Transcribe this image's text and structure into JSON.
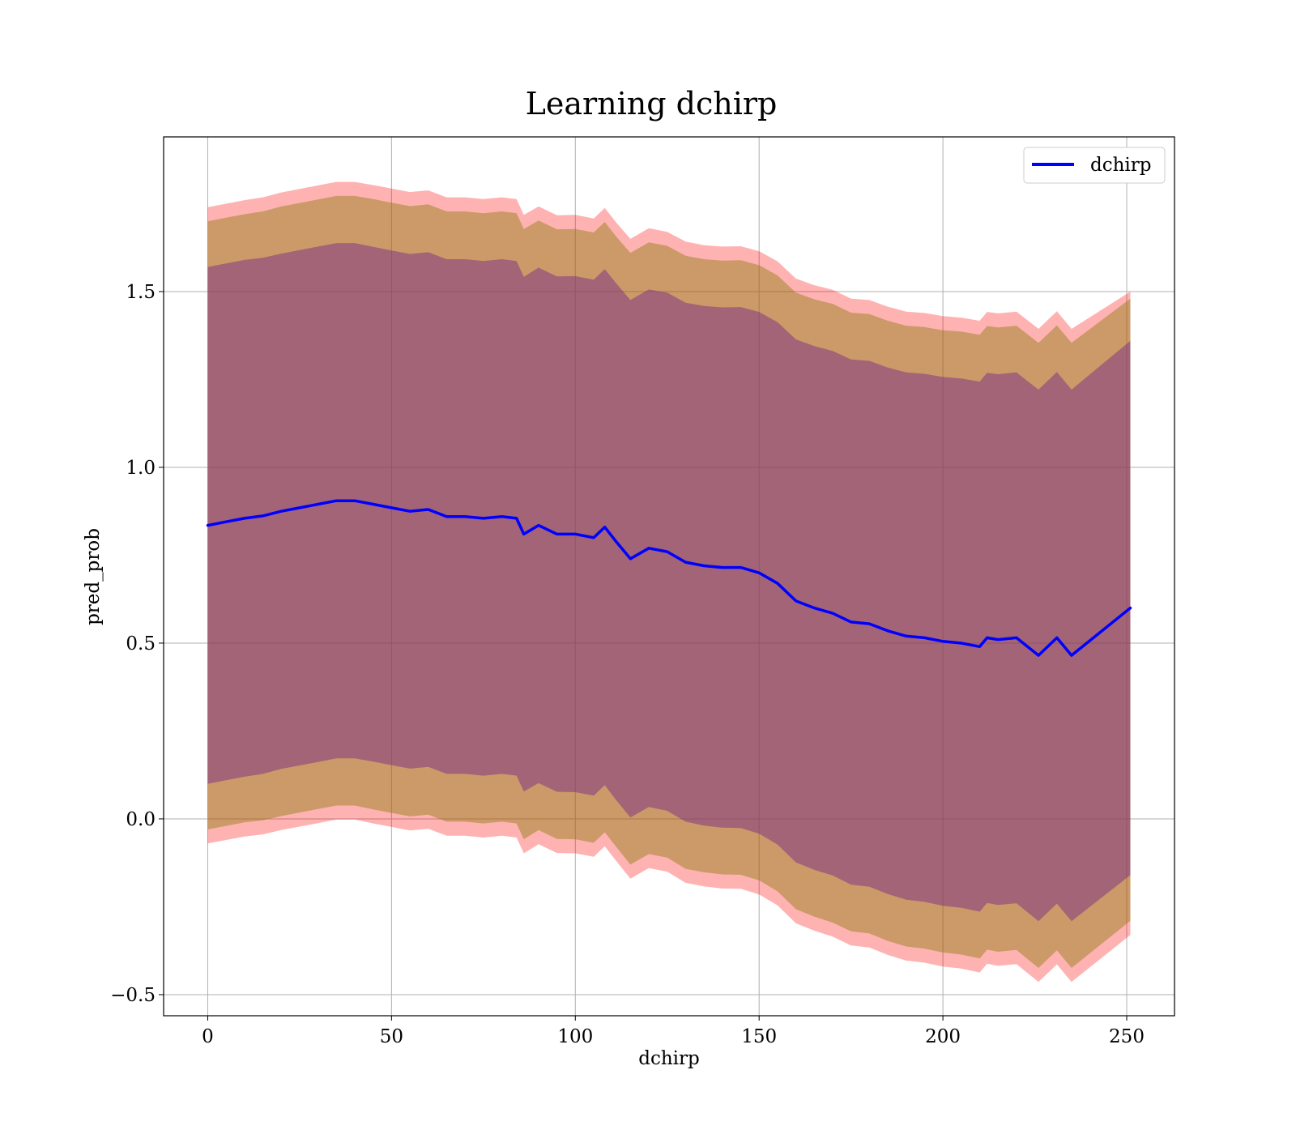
{
  "chart_data": {
    "type": "line",
    "title": "Learning dchirp",
    "xlabel": "dchirp",
    "ylabel": "pred_prob",
    "xlim": [
      -12,
      263
    ],
    "ylim": [
      -0.56,
      1.94
    ],
    "xticks": [
      0,
      50,
      100,
      150,
      200,
      250
    ],
    "xtick_labels": [
      "0",
      "50",
      "100",
      "150",
      "200",
      "250"
    ],
    "yticks": [
      -0.5,
      0.0,
      0.5,
      1.0,
      1.5
    ],
    "ytick_labels": [
      "−0.5",
      "0.0",
      "0.5",
      "1.0",
      "1.5"
    ],
    "grid": true,
    "legend": {
      "position": "top-right",
      "entries": [
        {
          "label": "dchirp",
          "color": "#0000ff"
        }
      ]
    },
    "colors": {
      "line": "#0000ff",
      "outer_band": "#ff0000",
      "middle_band": "#8b7d0e",
      "inner_band": "#7b2d86",
      "grid": "#b0b0b0",
      "axes": "#000000"
    },
    "series": [
      {
        "name": "dchirp",
        "x": [
          0,
          5,
          10,
          15,
          20,
          25,
          30,
          35,
          40,
          45,
          50,
          55,
          60,
          65,
          70,
          75,
          80,
          84,
          86,
          90,
          95,
          100,
          105,
          108,
          111,
          115,
          120,
          125,
          130,
          135,
          140,
          145,
          150,
          155,
          160,
          165,
          170,
          175,
          180,
          185,
          190,
          195,
          200,
          205,
          210,
          212,
          215,
          220,
          226,
          231,
          235,
          251
        ],
        "y": [
          0.835,
          0.845,
          0.855,
          0.862,
          0.875,
          0.885,
          0.895,
          0.905,
          0.905,
          0.895,
          0.885,
          0.875,
          0.88,
          0.86,
          0.86,
          0.855,
          0.86,
          0.855,
          0.81,
          0.835,
          0.81,
          0.81,
          0.8,
          0.83,
          0.79,
          0.74,
          0.77,
          0.76,
          0.73,
          0.72,
          0.715,
          0.715,
          0.7,
          0.67,
          0.62,
          0.6,
          0.585,
          0.56,
          0.555,
          0.535,
          0.52,
          0.515,
          0.505,
          0.5,
          0.49,
          0.515,
          0.51,
          0.515,
          0.465,
          0.515,
          0.465,
          0.6
        ]
      }
    ],
    "bands": [
      {
        "x": [
          0,
          5,
          10,
          15,
          20,
          25,
          30,
          35,
          40,
          45,
          50,
          55,
          60,
          65,
          70,
          75,
          80,
          84,
          86,
          90,
          95,
          100,
          105,
          108,
          111,
          115,
          120,
          125,
          130,
          135,
          140,
          145,
          150,
          155,
          160,
          165,
          170,
          175,
          180,
          185,
          190,
          195,
          200,
          205,
          210,
          212,
          215,
          220,
          226,
          231,
          235,
          251
        ],
        "lower": [
          0.1,
          0.11,
          0.12,
          0.128,
          0.142,
          0.152,
          0.162,
          0.172,
          0.172,
          0.163,
          0.153,
          0.143,
          0.148,
          0.128,
          0.128,
          0.123,
          0.128,
          0.123,
          0.078,
          0.102,
          0.077,
          0.076,
          0.066,
          0.096,
          0.055,
          0.004,
          0.034,
          0.023,
          -0.008,
          -0.019,
          -0.025,
          -0.026,
          -0.042,
          -0.073,
          -0.124,
          -0.145,
          -0.161,
          -0.187,
          -0.193,
          -0.214,
          -0.23,
          -0.236,
          -0.247,
          -0.253,
          -0.264,
          -0.239,
          -0.245,
          -0.24,
          -0.291,
          -0.241,
          -0.291,
          -0.16
        ],
        "upper": [
          1.57,
          1.58,
          1.59,
          1.596,
          1.608,
          1.618,
          1.628,
          1.638,
          1.638,
          1.627,
          1.617,
          1.607,
          1.612,
          1.592,
          1.592,
          1.587,
          1.592,
          1.587,
          1.542,
          1.568,
          1.543,
          1.544,
          1.534,
          1.564,
          1.525,
          1.476,
          1.506,
          1.497,
          1.468,
          1.459,
          1.455,
          1.456,
          1.442,
          1.413,
          1.364,
          1.345,
          1.331,
          1.307,
          1.303,
          1.284,
          1.27,
          1.266,
          1.257,
          1.253,
          1.244,
          1.269,
          1.265,
          1.27,
          1.221,
          1.271,
          1.221,
          1.36
        ]
      },
      {
        "x": [
          0,
          5,
          10,
          15,
          20,
          25,
          30,
          35,
          40,
          45,
          50,
          55,
          60,
          65,
          70,
          75,
          80,
          84,
          86,
          90,
          95,
          100,
          105,
          108,
          111,
          115,
          120,
          125,
          130,
          135,
          140,
          145,
          150,
          155,
          160,
          165,
          170,
          175,
          180,
          185,
          190,
          195,
          200,
          205,
          210,
          212,
          215,
          220,
          226,
          231,
          235,
          251
        ],
        "lower": [
          -0.03,
          -0.02,
          -0.01,
          -0.004,
          0.008,
          0.018,
          0.028,
          0.038,
          0.038,
          0.027,
          0.017,
          0.007,
          0.012,
          -0.008,
          -0.008,
          -0.013,
          -0.008,
          -0.013,
          -0.058,
          -0.032,
          -0.057,
          -0.058,
          -0.068,
          -0.038,
          -0.078,
          -0.13,
          -0.1,
          -0.11,
          -0.142,
          -0.152,
          -0.158,
          -0.159,
          -0.175,
          -0.206,
          -0.257,
          -0.278,
          -0.295,
          -0.32,
          -0.326,
          -0.347,
          -0.363,
          -0.369,
          -0.38,
          -0.386,
          -0.397,
          -0.372,
          -0.378,
          -0.373,
          -0.424,
          -0.374,
          -0.424,
          -0.29
        ],
        "upper": [
          1.7,
          1.71,
          1.72,
          1.728,
          1.742,
          1.752,
          1.762,
          1.772,
          1.772,
          1.763,
          1.753,
          1.743,
          1.748,
          1.728,
          1.728,
          1.723,
          1.728,
          1.723,
          1.678,
          1.702,
          1.677,
          1.678,
          1.668,
          1.698,
          1.658,
          1.61,
          1.64,
          1.63,
          1.602,
          1.592,
          1.588,
          1.589,
          1.575,
          1.546,
          1.497,
          1.478,
          1.465,
          1.44,
          1.436,
          1.417,
          1.403,
          1.399,
          1.39,
          1.386,
          1.377,
          1.402,
          1.398,
          1.403,
          1.354,
          1.404,
          1.354,
          1.48
        ]
      },
      {
        "x": [
          0,
          5,
          10,
          15,
          20,
          25,
          30,
          35,
          40,
          45,
          50,
          55,
          60,
          65,
          70,
          75,
          80,
          84,
          86,
          90,
          95,
          100,
          105,
          108,
          111,
          115,
          120,
          125,
          130,
          135,
          140,
          145,
          150,
          155,
          160,
          165,
          170,
          175,
          180,
          185,
          190,
          195,
          200,
          205,
          210,
          212,
          215,
          220,
          226,
          231,
          235,
          251
        ],
        "lower": [
          -0.07,
          -0.06,
          -0.05,
          -0.044,
          -0.032,
          -0.022,
          -0.012,
          -0.002,
          -0.002,
          -0.013,
          -0.023,
          -0.033,
          -0.028,
          -0.048,
          -0.048,
          -0.053,
          -0.048,
          -0.053,
          -0.098,
          -0.072,
          -0.097,
          -0.098,
          -0.108,
          -0.078,
          -0.118,
          -0.17,
          -0.14,
          -0.15,
          -0.182,
          -0.192,
          -0.198,
          -0.199,
          -0.215,
          -0.246,
          -0.297,
          -0.318,
          -0.335,
          -0.36,
          -0.366,
          -0.387,
          -0.403,
          -0.409,
          -0.42,
          -0.426,
          -0.437,
          -0.412,
          -0.418,
          -0.413,
          -0.464,
          -0.414,
          -0.464,
          -0.33
        ],
        "upper": [
          1.74,
          1.75,
          1.76,
          1.768,
          1.782,
          1.792,
          1.802,
          1.812,
          1.812,
          1.803,
          1.793,
          1.783,
          1.788,
          1.768,
          1.768,
          1.763,
          1.768,
          1.763,
          1.718,
          1.742,
          1.717,
          1.718,
          1.708,
          1.738,
          1.698,
          1.65,
          1.68,
          1.67,
          1.642,
          1.632,
          1.628,
          1.629,
          1.615,
          1.586,
          1.537,
          1.518,
          1.505,
          1.48,
          1.476,
          1.457,
          1.443,
          1.439,
          1.43,
          1.426,
          1.417,
          1.442,
          1.438,
          1.443,
          1.394,
          1.444,
          1.394,
          1.5
        ]
      }
    ]
  }
}
